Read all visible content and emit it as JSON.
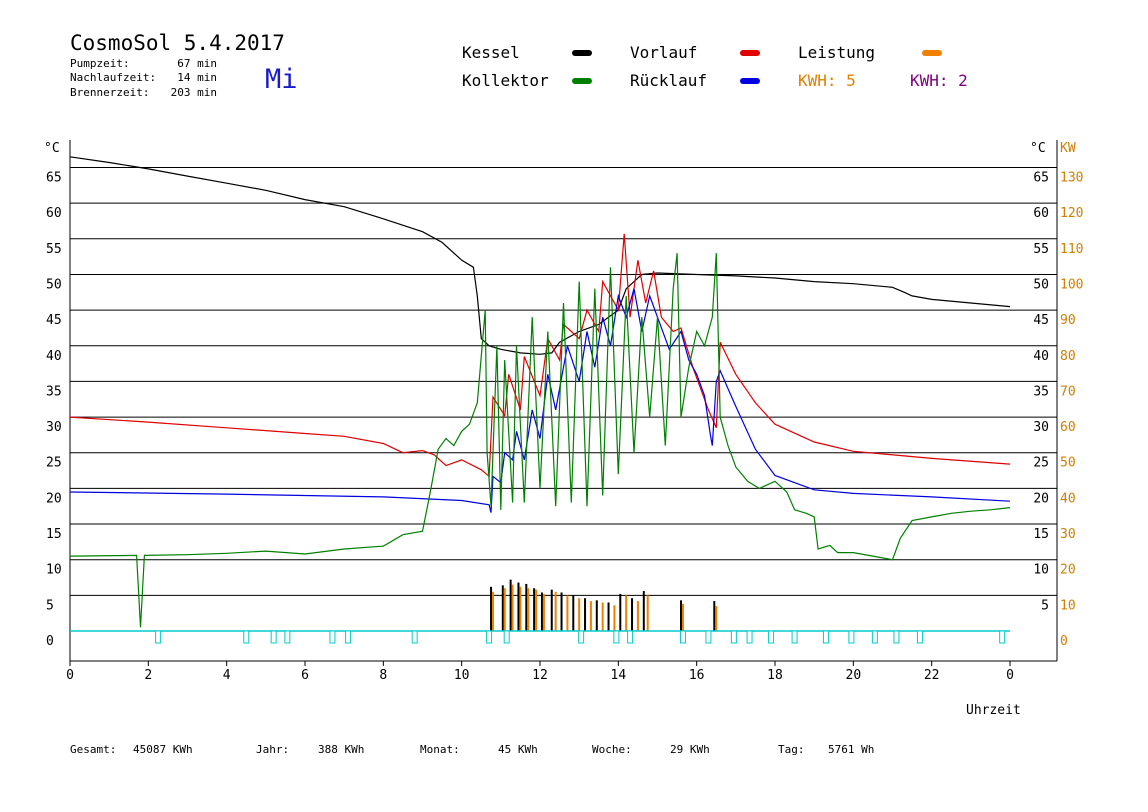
{
  "header": {
    "title": "CosmoSol 5.4.2017",
    "day": "Mi",
    "stats": [
      {
        "label": "Pumpzeit:",
        "value": "67 min"
      },
      {
        "label": "Nachlaufzeit:",
        "value": "14 min"
      },
      {
        "label": "Brennerzeit:",
        "value": "203 min"
      }
    ]
  },
  "legend": {
    "items": [
      {
        "label": "Kessel",
        "color": "#000000"
      },
      {
        "label": "Vorlauf",
        "color": "#e00000"
      },
      {
        "label": "Leistung",
        "color": "#f08000"
      },
      {
        "label": "Kollektor",
        "color": "#008000"
      },
      {
        "label": "Rücklauf",
        "color": "#0000e0"
      }
    ],
    "kwh_orange": "KWH: 5",
    "kwh_purple": "KWH: 2",
    "kwh_orange_color": "#e08000",
    "kwh_purple_color": "#800080"
  },
  "footer": [
    {
      "label": "Gesamt:",
      "value": "45087 KWh"
    },
    {
      "label": "Jahr:",
      "value": "388 KWh"
    },
    {
      "label": "Monat:",
      "value": "45 KWh"
    },
    {
      "label": "Woche:",
      "value": "29 KWh"
    },
    {
      "label": "Tag:",
      "value": "5761 Wh"
    }
  ],
  "chart_data": {
    "type": "line",
    "xlabel": "Uhrzeit",
    "ylabel_left": "°C",
    "ylabel_right_temp": "°C",
    "ylabel_right_power": "KW",
    "x_range": [
      0,
      24
    ],
    "y_range": [
      0,
      65
    ],
    "x_tick_labels": [
      "0",
      "2",
      "4",
      "6",
      "8",
      "10",
      "12",
      "14",
      "16",
      "18",
      "20",
      "22",
      "0"
    ],
    "y_left_ticks": [
      "0",
      "5",
      "10",
      "15",
      "20",
      "25",
      "30",
      "35",
      "40",
      "45",
      "50",
      "55",
      "60",
      "65"
    ],
    "y_right_temp_ticks": [
      "5",
      "10",
      "15",
      "20",
      "25",
      "30",
      "35",
      "40",
      "45",
      "50",
      "55",
      "60",
      "65"
    ],
    "y_right_power_ticks": [
      "0",
      "10",
      "20",
      "30",
      "40",
      "50",
      "60",
      "70",
      "80",
      "90",
      "100",
      "110",
      "120",
      "130"
    ],
    "grid": true,
    "series": [
      {
        "name": "Kessel",
        "color": "#000000",
        "x": [
          0,
          1,
          2,
          3,
          4,
          5,
          6,
          7,
          8,
          9,
          9.5,
          10,
          10.3,
          10.4,
          10.5,
          10.7,
          11,
          11.5,
          12,
          12.3,
          12.5,
          13,
          13.5,
          14,
          14.2,
          14.6,
          15,
          16,
          17,
          18,
          19,
          20,
          21,
          21.3,
          21.5,
          22,
          23,
          24
        ],
        "y": [
          66.5,
          65.7,
          64.8,
          63.8,
          62.8,
          61.8,
          60.5,
          59.5,
          57.8,
          56,
          54.5,
          52,
          51,
          47,
          41,
          40,
          39.5,
          39,
          38.8,
          39,
          40.5,
          42,
          43,
          45,
          48,
          50,
          50.2,
          50,
          49.8,
          49.5,
          49,
          48.7,
          48.2,
          47.5,
          47,
          46.5,
          46,
          45.5
        ]
      },
      {
        "name": "Vorlauf",
        "color": "#e00000",
        "x": [
          0,
          2,
          4,
          6,
          7,
          8,
          8.5,
          9,
          9.3,
          9.6,
          10,
          10.5,
          10.7,
          10.8,
          11.1,
          11.2,
          11.5,
          11.6,
          12,
          12.2,
          12.5,
          12.6,
          13,
          13.2,
          13.5,
          13.6,
          14,
          14.15,
          14.3,
          14.5,
          14.7,
          14.9,
          15.1,
          15.4,
          15.6,
          15.9,
          16.1,
          16.3,
          16.5,
          16.6,
          17,
          17.5,
          18,
          19,
          20,
          22,
          24
        ],
        "y": [
          30,
          29.3,
          28.5,
          27.7,
          27.3,
          26.3,
          25,
          25.3,
          24.7,
          23.2,
          24,
          22.6,
          21.7,
          32.8,
          30.2,
          36,
          31,
          38.5,
          33,
          41,
          38,
          43,
          41,
          45,
          42,
          49,
          45,
          55.7,
          44,
          52,
          46,
          50.5,
          44,
          42,
          42.5,
          37,
          34,
          31,
          28.5,
          40.5,
          36,
          32,
          29,
          26.5,
          25.2,
          24.2,
          23.4
        ]
      },
      {
        "name": "Rücklauf",
        "color": "#0000e0",
        "x": [
          0,
          4,
          8,
          10,
          10.7,
          10.75,
          10.8,
          11,
          11.1,
          11.3,
          11.4,
          11.6,
          11.8,
          12,
          12.2,
          12.4,
          12.7,
          13,
          13.2,
          13.4,
          13.6,
          13.8,
          14,
          14.2,
          14.4,
          14.6,
          14.8,
          15,
          15.3,
          15.6,
          15.8,
          16,
          16.2,
          16.35,
          16.4,
          16.5,
          16.6,
          16.8,
          17,
          17.5,
          18,
          19,
          20,
          22,
          24
        ],
        "y": [
          19.5,
          19.2,
          18.8,
          18.3,
          17.7,
          16.6,
          21.7,
          20.8,
          25,
          24,
          28,
          24,
          31,
          27,
          36,
          31,
          40,
          35,
          42,
          37,
          44,
          40,
          47,
          44,
          48,
          42,
          47,
          44,
          39.5,
          42,
          38,
          36,
          33,
          27.5,
          26,
          35,
          36.5,
          34,
          31.5,
          25.5,
          21.8,
          19.8,
          19.3,
          18.8,
          18.2
        ]
      },
      {
        "name": "Kollektor",
        "color": "#008000",
        "x": [
          0,
          1.7,
          1.8,
          1.9,
          3,
          4,
          5,
          6,
          7,
          8,
          8.5,
          9,
          9.2,
          9.4,
          9.6,
          9.8,
          10,
          10.2,
          10.4,
          10.6,
          10.65,
          10.75,
          10.9,
          11,
          11.1,
          11.3,
          11.4,
          11.6,
          11.8,
          12,
          12.2,
          12.4,
          12.6,
          12.8,
          13,
          13.2,
          13.4,
          13.6,
          13.8,
          14,
          14.2,
          14.4,
          14.6,
          14.8,
          15,
          15.2,
          15.4,
          15.5,
          15.6,
          15.8,
          16,
          16.2,
          16.4,
          16.5,
          16.6,
          16.8,
          17,
          17.3,
          17.6,
          18,
          18.3,
          18.5,
          18.8,
          19,
          19.1,
          19.4,
          19.6,
          20,
          20.5,
          21,
          21.2,
          21.5,
          22,
          22.5,
          23,
          23.5,
          24
        ],
        "y": [
          10.5,
          10.6,
          0.5,
          10.6,
          10.7,
          10.9,
          11.2,
          10.8,
          11.5,
          11.9,
          13.5,
          14,
          19.5,
          25.5,
          27,
          26,
          28,
          29,
          32,
          45,
          25,
          17.5,
          40,
          17,
          38,
          18,
          40,
          18,
          44,
          20,
          42,
          17.5,
          46,
          18,
          49,
          17.5,
          48,
          19,
          51,
          22,
          47,
          25,
          44,
          30,
          44,
          26,
          48,
          53,
          30,
          37,
          42,
          40,
          44,
          53,
          30,
          26,
          23,
          21,
          20,
          21,
          19.5,
          17,
          16.5,
          16,
          11.5,
          12,
          11,
          11,
          10.5,
          10,
          13,
          15.5,
          16,
          16.5,
          16.8,
          17,
          17.3
        ]
      }
    ],
    "power_bars": {
      "black": {
        "x": [
          10.75,
          11.05,
          11.25,
          11.45,
          11.65,
          11.85,
          12.05,
          12.3,
          12.55,
          12.85,
          13.15,
          13.45,
          13.75,
          14.05,
          14.35,
          14.65,
          15.6,
          16.45
        ],
        "y": [
          6.2,
          6.4,
          7.2,
          6.8,
          6.6,
          6.0,
          5.4,
          5.8,
          5.4,
          5.0,
          4.6,
          4.3,
          4.0,
          5.2,
          4.6,
          5.6,
          4.3,
          4.2
        ]
      },
      "orange": {
        "x": [
          10.8,
          11.1,
          11.3,
          11.5,
          11.7,
          11.9,
          12.1,
          12.4,
          12.7,
          13.0,
          13.3,
          13.6,
          13.9,
          14.2,
          14.5,
          14.75,
          15.65,
          16.5
        ],
        "y": [
          5.5,
          6.0,
          6.5,
          6.2,
          6.0,
          5.8,
          5.2,
          5.5,
          5.0,
          4.6,
          4.2,
          4.0,
          3.6,
          5.0,
          4.2,
          5.0,
          3.8,
          3.5
        ]
      }
    },
    "pump_markers": {
      "color": "#00cccc",
      "x": [
        2.25,
        4.5,
        5.2,
        5.55,
        6.7,
        7.1,
        8.8,
        10.7,
        11.15,
        13.05,
        13.95,
        14.3,
        15.65,
        16.3,
        16.95,
        17.35,
        17.9,
        18.5,
        19.3,
        19.95,
        20.55,
        21.1,
        21.7,
        23.8
      ]
    }
  }
}
